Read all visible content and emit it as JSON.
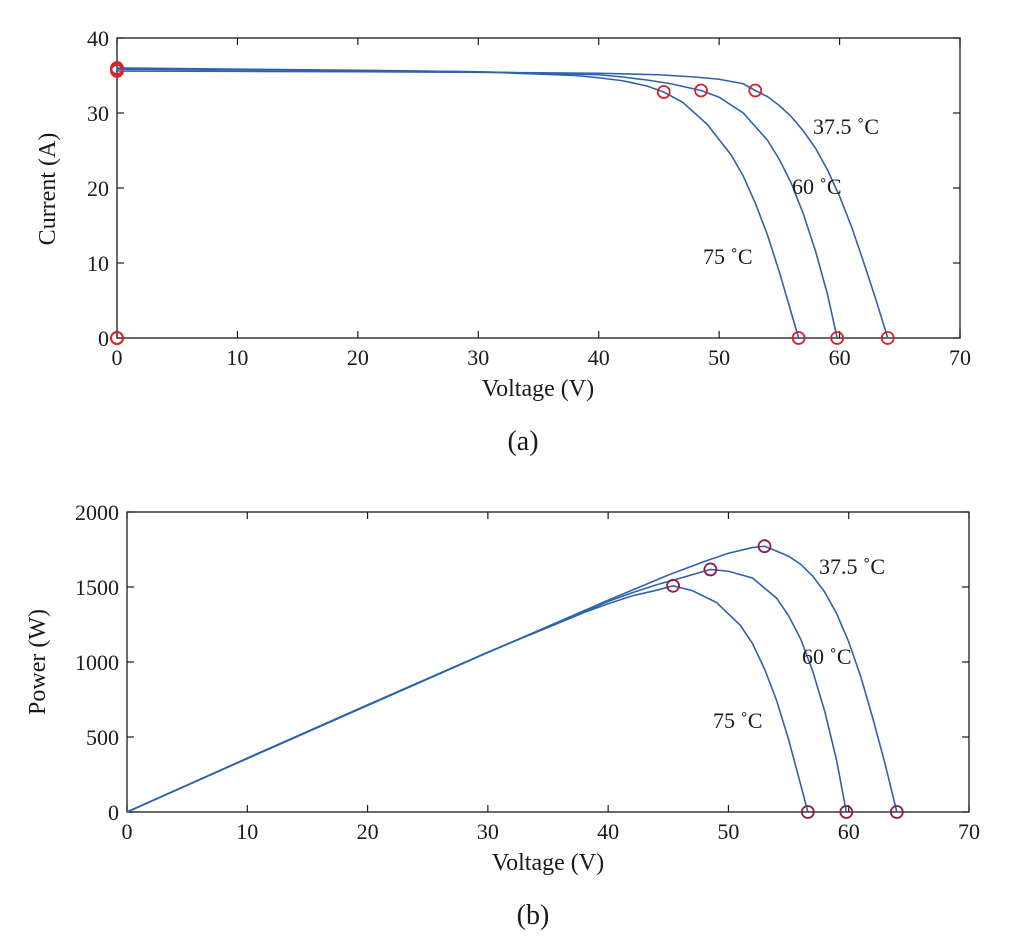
{
  "colors": {
    "curve": "#2f62ad",
    "marker_iv": "#d8232a",
    "marker_pv": "#8b1f4a",
    "axis": "#1a1a1a"
  },
  "chart_data": [
    {
      "type": "line",
      "caption": "(a)",
      "xlabel": "Voltage (V)",
      "ylabel": "Current (A)",
      "xlim": [
        0,
        70
      ],
      "ylim": [
        0,
        40
      ],
      "xticks": [
        0,
        10,
        20,
        30,
        40,
        50,
        60,
        70
      ],
      "yticks": [
        0,
        10,
        20,
        30,
        40
      ],
      "grid": false,
      "legend": "none",
      "series": [
        {
          "label": "37.5 ˚C",
          "x": [
            0,
            10,
            20,
            30,
            40,
            45,
            48,
            50,
            52,
            53,
            54,
            55,
            56,
            57,
            58,
            59,
            60,
            61,
            62,
            63,
            64
          ],
          "y": [
            35.6,
            35.55,
            35.5,
            35.42,
            35.3,
            35.1,
            34.8,
            34.5,
            33.9,
            33.0,
            32.2,
            31.0,
            29.5,
            27.6,
            25.3,
            22.4,
            18.9,
            14.8,
            10.1,
            5.2,
            0
          ],
          "markers": {
            "x": [
              0,
              0,
              53,
              64
            ],
            "y": [
              35.6,
              0,
              33.0,
              0
            ]
          }
        },
        {
          "label": "60 ˚C",
          "x": [
            0,
            10,
            20,
            30,
            40,
            42,
            44,
            46,
            48.5,
            50,
            52,
            54,
            55,
            56,
            57,
            58,
            59,
            59.8
          ],
          "y": [
            35.85,
            35.75,
            35.65,
            35.5,
            35.1,
            34.8,
            34.4,
            33.9,
            33.0,
            32.1,
            30.0,
            26.4,
            23.8,
            20.6,
            16.5,
            11.6,
            5.8,
            0
          ],
          "markers": {
            "x": [
              0,
              0,
              48.5,
              59.8
            ],
            "y": [
              35.85,
              0,
              33.0,
              0
            ]
          }
        },
        {
          "label": "75 ˚C",
          "x": [
            0,
            10,
            20,
            30,
            38,
            40,
            42,
            44,
            45.4,
            47,
            49,
            51,
            52,
            53,
            54,
            55,
            56,
            56.6
          ],
          "y": [
            36.0,
            35.85,
            35.7,
            35.5,
            35.0,
            34.7,
            34.3,
            33.6,
            32.8,
            31.4,
            28.5,
            24.4,
            21.6,
            18.0,
            13.8,
            8.8,
            3.3,
            0
          ],
          "markers": {
            "x": [
              0,
              0,
              45.4,
              56.6
            ],
            "y": [
              36.0,
              0,
              32.8,
              0
            ]
          }
        }
      ]
    },
    {
      "type": "line",
      "caption": "(b)",
      "xlabel": "Voltage (V)",
      "ylabel": "Power (W)",
      "xlim": [
        0,
        70
      ],
      "ylim": [
        0,
        2000
      ],
      "xticks": [
        0,
        10,
        20,
        30,
        40,
        50,
        60,
        70
      ],
      "yticks": [
        0,
        500,
        1000,
        1500,
        2000
      ],
      "grid": false,
      "legend": "none",
      "series": [
        {
          "label": "37.5 ˚C",
          "x": [
            0,
            10,
            20,
            30,
            40,
            45,
            48,
            50,
            52,
            53,
            54,
            55,
            56,
            57,
            58,
            59,
            60,
            61,
            62,
            63,
            64
          ],
          "y": [
            0,
            356,
            710,
            1063,
            1412,
            1580,
            1670,
            1725,
            1763,
            1772,
            1739,
            1705,
            1652,
            1573,
            1467,
            1322,
            1134,
            903,
            626,
            328,
            0
          ],
          "markers": {
            "x": [
              53,
              64
            ],
            "y": [
              1772,
              0
            ]
          }
        },
        {
          "label": "60 ˚C",
          "x": [
            0,
            10,
            20,
            30,
            40,
            42,
            44,
            46,
            48.5,
            50,
            52,
            54,
            55,
            56,
            57,
            58,
            59,
            59.8
          ],
          "y": [
            0,
            358,
            713,
            1065,
            1404,
            1462,
            1514,
            1559,
            1617,
            1605,
            1560,
            1426,
            1309,
            1154,
            941,
            673,
            342,
            0
          ],
          "markers": {
            "x": [
              48.5,
              59.8
            ],
            "y": [
              1617,
              0
            ]
          }
        },
        {
          "label": "75 ˚C",
          "x": [
            0,
            10,
            20,
            30,
            38,
            40,
            42,
            44,
            45.4,
            47,
            49,
            51,
            52,
            53,
            54,
            55,
            56,
            56.6
          ],
          "y": [
            0,
            359,
            714,
            1065,
            1330,
            1388,
            1441,
            1478,
            1508,
            1476,
            1397,
            1244,
            1123,
            954,
            745,
            484,
            185,
            0
          ],
          "markers": {
            "x": [
              45.4,
              56.6
            ],
            "y": [
              1508,
              0
            ]
          }
        }
      ]
    }
  ]
}
